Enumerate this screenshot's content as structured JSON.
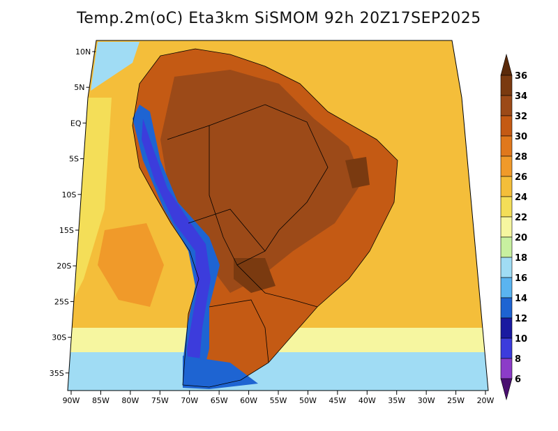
{
  "title": "Temp.2m(oC) Eta3km SiSMOM 92h 20Z17SEP2025",
  "lat_labels": [
    "10N",
    "5N",
    "EQ",
    "5S",
    "10S",
    "15S",
    "20S",
    "25S",
    "30S",
    "35S"
  ],
  "lon_labels": [
    "90W",
    "85W",
    "80W",
    "75W",
    "70W",
    "65W",
    "60W",
    "55W",
    "50W",
    "45W",
    "40W",
    "35W",
    "30W",
    "25W",
    "20W"
  ],
  "colorbar": {
    "labels": [
      "36",
      "34",
      "32",
      "30",
      "28",
      "26",
      "24",
      "22",
      "20",
      "18",
      "16",
      "14",
      "12",
      "10",
      "8",
      "6"
    ],
    "colors": [
      "#7a3a10",
      "#9c4a18",
      "#c45a14",
      "#e0781c",
      "#f09a2a",
      "#f4be3a",
      "#f4de58",
      "#f6f6a0",
      "#c8f0a0",
      "#a0dcf4",
      "#5ab4f0",
      "#1e64d2",
      "#1a1aa0",
      "#3c3cdc",
      "#8c3cc8",
      "#6a1e8c"
    ],
    "tip_top": "#5a2a0a",
    "tip_bottom": "#4a1070"
  },
  "field_colors": {
    "ocean_warm": "#f4be3a",
    "ocean_mid": "#f09a2a",
    "ocean_cool": "#f4de58",
    "ocean_pale": "#f6f6a0",
    "ocean_cold": "#a0dcf4",
    "land_hot": "#9c4a18",
    "land_vhot": "#7a3a10",
    "land_warm": "#c45a14",
    "andes_cold": "#1e64d2",
    "andes_vcold": "#3c3cdc",
    "boundary": "#000000"
  }
}
